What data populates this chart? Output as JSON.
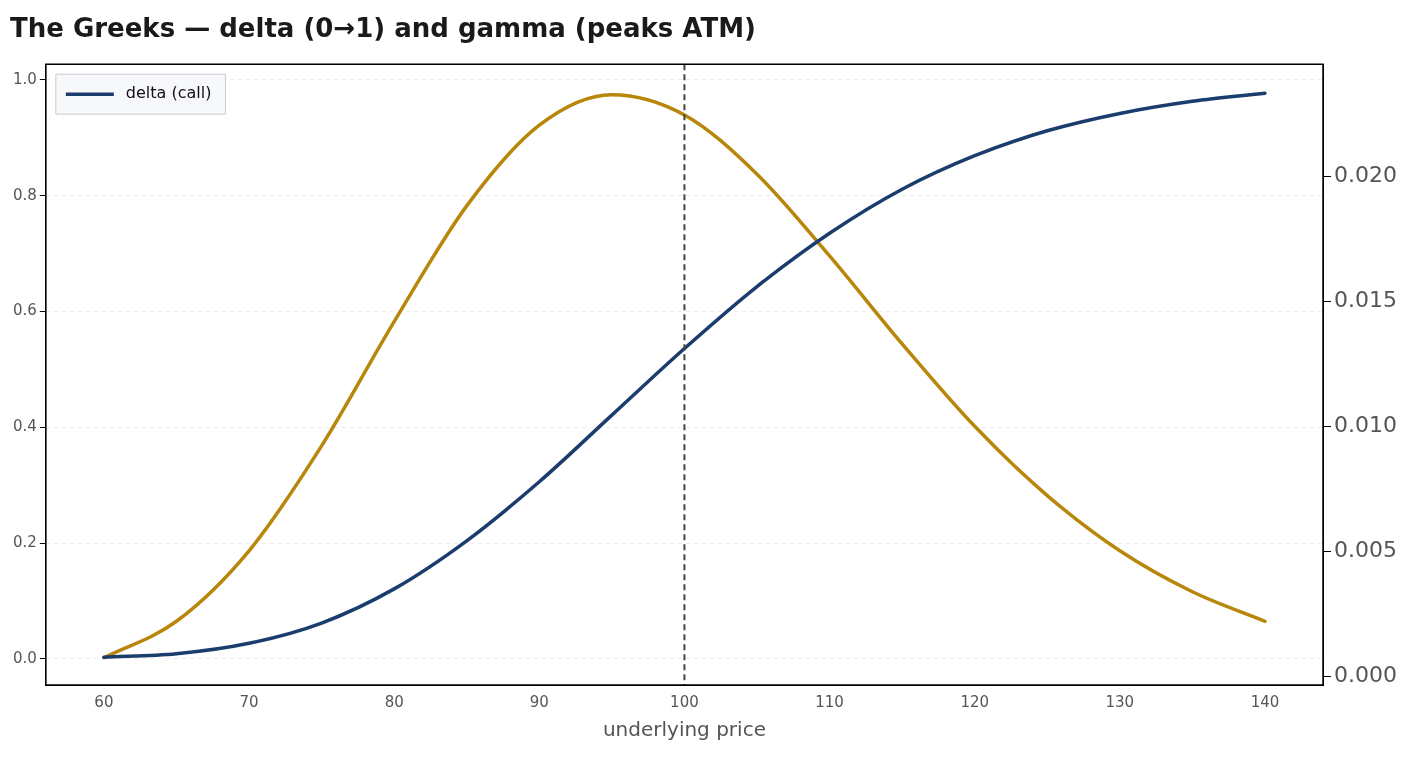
{
  "chart_data": {
    "type": "line",
    "title": "The Greeks — delta (0→1) and gamma (peaks ATM)",
    "xlabel": "underlying price",
    "x": [
      60,
      65,
      70,
      75,
      80,
      85,
      90,
      95,
      100,
      105,
      110,
      115,
      120,
      125,
      130,
      135,
      140
    ],
    "series": [
      {
        "name": "delta (call)",
        "color": "#1b3d6d",
        "values": [
          0.003,
          0.009,
          0.027,
          0.062,
          0.121,
          0.204,
          0.306,
          0.421,
          0.536,
          0.643,
          0.735,
          0.811,
          0.869,
          0.912,
          0.942,
          0.963,
          0.977
        ]
      },
      {
        "color": "#b8860b",
        "axis": "y2",
        "values": [
          0.00075,
          0.00221,
          0.00503,
          0.00923,
          0.0142,
          0.01883,
          0.02206,
          0.02328,
          0.02247,
          0.0201,
          0.01683,
          0.01331,
          0.01001,
          0.00724,
          0.00503,
          0.00339,
          0.00221
        ]
      }
    ],
    "xlim": [
      56,
      144
    ],
    "xticks": [
      60,
      70,
      80,
      90,
      100,
      110,
      120,
      130,
      140
    ],
    "ylim": [
      -0.045,
      1.027
    ],
    "yticks": [
      {
        "value": 0,
        "label": "0.0"
      },
      {
        "value": 0.2,
        "label": "0.2"
      },
      {
        "value": 0.4,
        "label": "0.4"
      },
      {
        "value": 0.6,
        "label": "0.6"
      },
      {
        "value": 0.8,
        "label": "0.8"
      },
      {
        "value": 1,
        "label": "1.0"
      }
    ],
    "y2lim": [
      -0.00034,
      0.0245
    ],
    "y2ticks": [
      {
        "value": 0,
        "label": "0.000"
      },
      {
        "value": 0.005,
        "label": "0.005"
      },
      {
        "value": 0.01,
        "label": "0.010"
      },
      {
        "value": 0.015,
        "label": "0.015"
      },
      {
        "value": 0.02,
        "label": "0.020"
      }
    ],
    "ref_lines": [
      {
        "axis": "x",
        "value": 100,
        "color": "#444444",
        "line_style": "dashed"
      }
    ],
    "grid": "y",
    "legend": "top left",
    "marker": "none",
    "line_style": "solid"
  }
}
